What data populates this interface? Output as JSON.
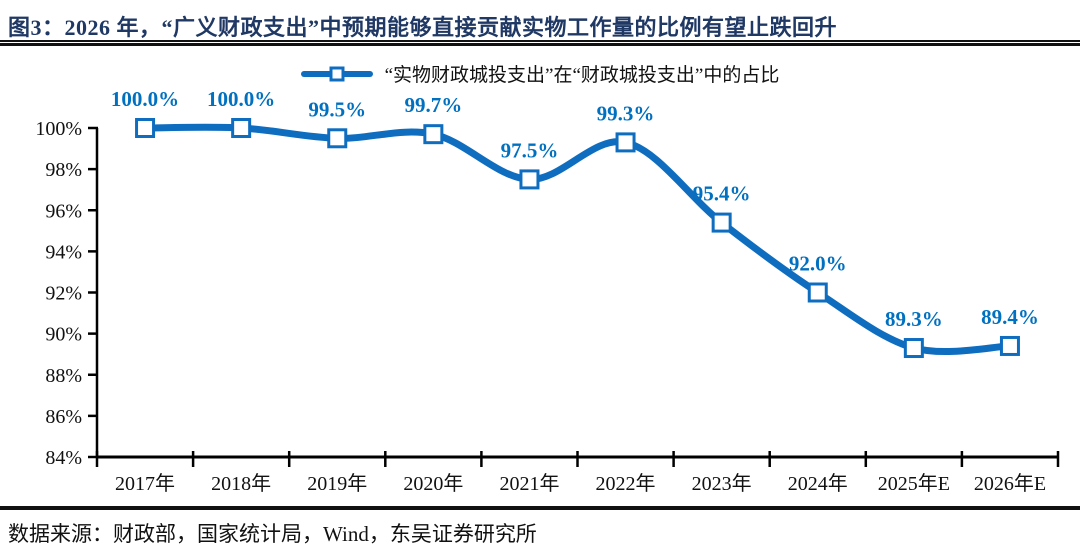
{
  "figure": {
    "title": "图3：2026 年，“广义财政支出”中预期能够直接贡献实物工作量的比例有望止跌回升",
    "source": "数据来源：财政部，国家统计局，Wind，东吴证券研究所"
  },
  "legend": {
    "label": "“实物财政城投支出”在“财政城投支出”中的占比"
  },
  "colors": {
    "line": "#0F6DC0",
    "data_label": "#0070C0",
    "title": "#1F3864",
    "axis": "#000000"
  },
  "chart_data": {
    "type": "line",
    "title": "“实物财政城投支出”在“财政城投支出”中的占比",
    "categories": [
      "2017年",
      "2018年",
      "2019年",
      "2020年",
      "2021年",
      "2022年",
      "2023年",
      "2024年",
      "2025年E",
      "2026年E"
    ],
    "values": [
      100.0,
      100.0,
      99.5,
      99.7,
      97.5,
      99.3,
      95.4,
      92.0,
      89.3,
      89.4
    ],
    "point_labels": [
      "100.0%",
      "100.0%",
      "99.5%",
      "99.7%",
      "97.5%",
      "99.3%",
      "95.4%",
      "92.0%",
      "89.3%",
      "89.4%"
    ],
    "xlabel": "",
    "ylabel": "",
    "ylim": [
      84,
      100
    ],
    "ytick_step": 2,
    "ytick_labels": [
      "84%",
      "86%",
      "88%",
      "90%",
      "92%",
      "94%",
      "96%",
      "98%",
      "100%"
    ],
    "grid": false,
    "smooth": true,
    "marker": "hollow-square",
    "legend_position": "top-center"
  }
}
